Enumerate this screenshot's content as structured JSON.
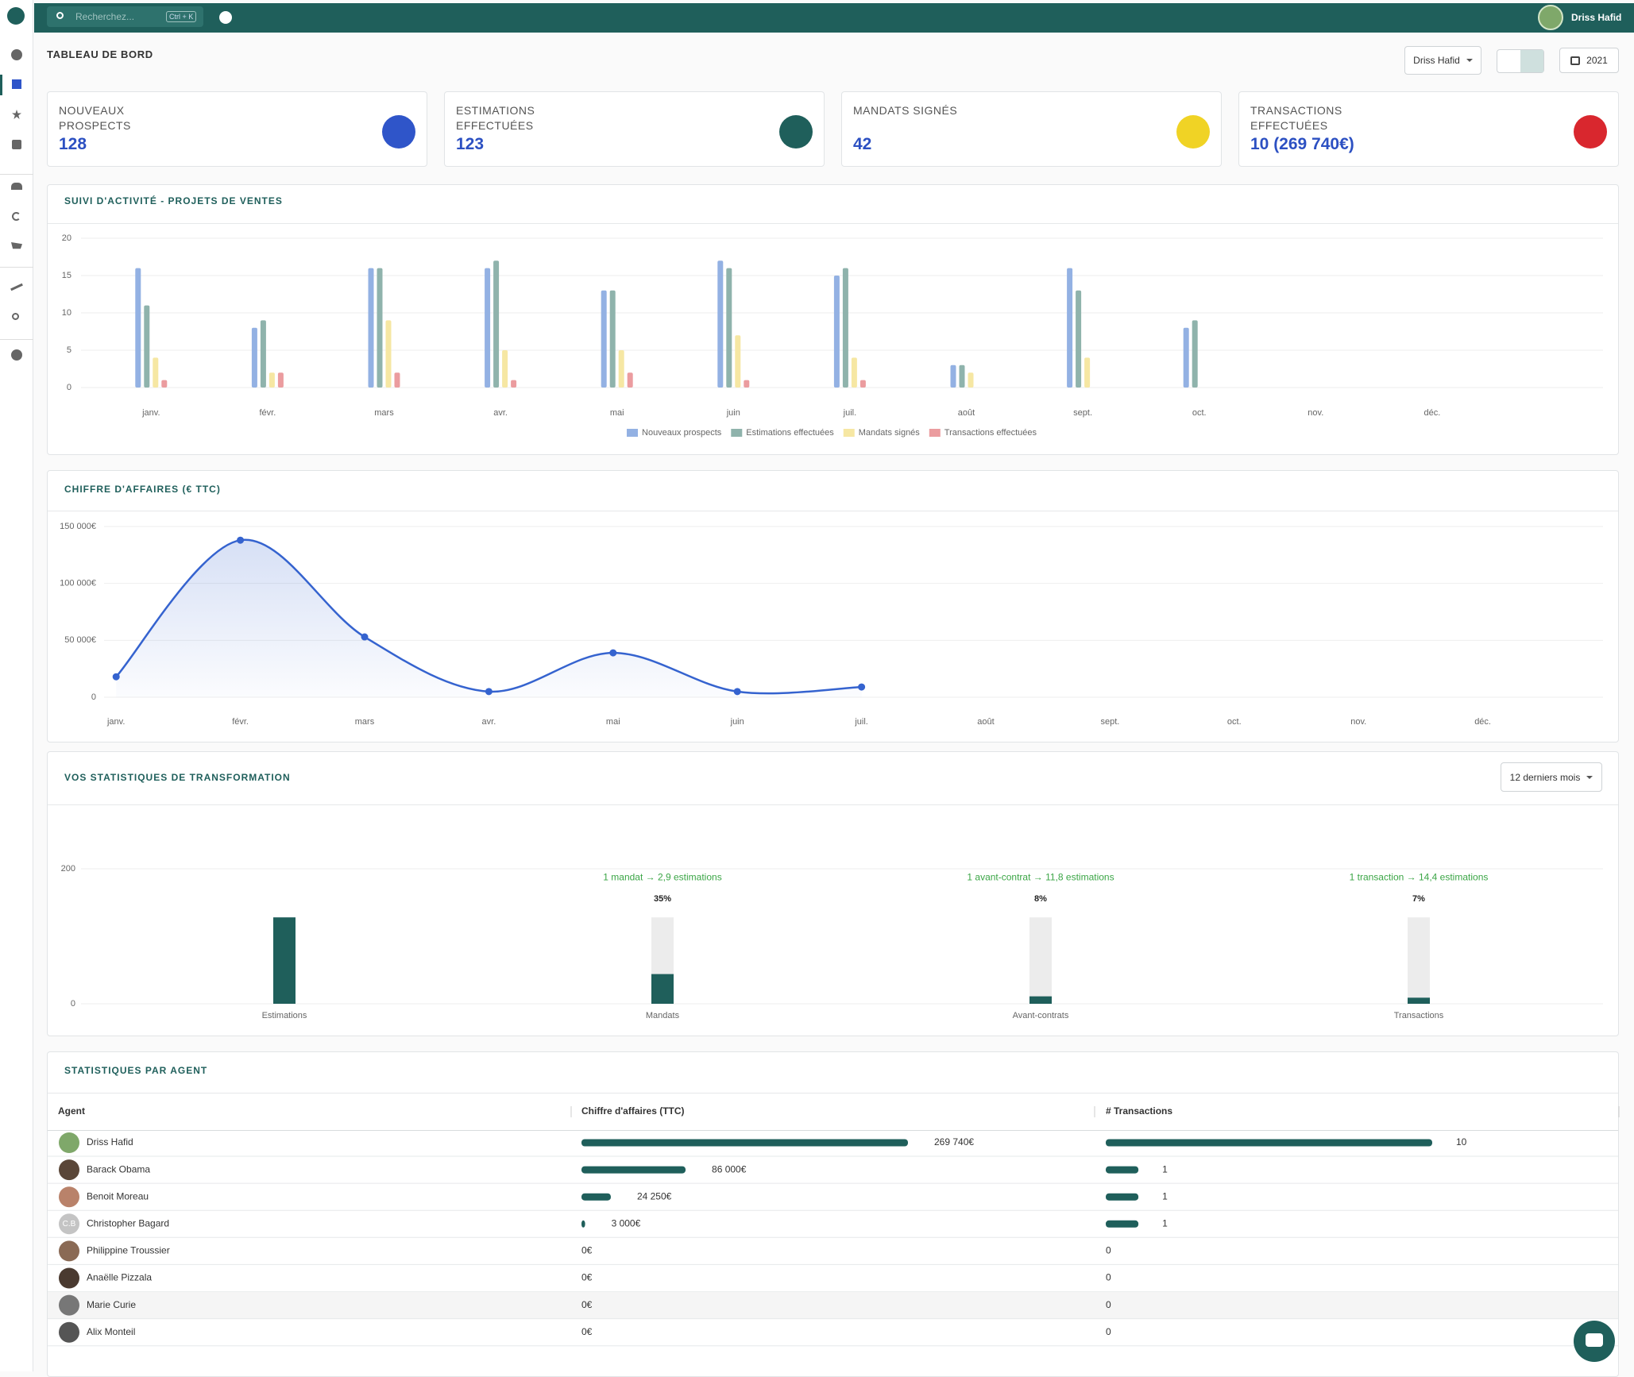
{
  "header": {
    "search_placeholder": "Recherchez...",
    "shortcut": "Ctrl + K",
    "user": "Driss Hafid"
  },
  "page": {
    "title": "TABLEAU DE BORD",
    "agent_filter": "Driss Hafid",
    "year": "2021"
  },
  "kpis": [
    {
      "label": "NOUVEAUX PROSPECTS",
      "value": 128,
      "color": "#2f55c9"
    },
    {
      "label": "ESTIMATIONS EFFECTUÉES",
      "value": 123,
      "color": "#1f5f5b"
    },
    {
      "label": "MANDATS SIGNÉS",
      "value": 42,
      "color": "#f0d325"
    },
    {
      "label": "TRANSACTIONS EFFECTUÉES",
      "value": "10 (269 740€)",
      "color": "#d9272e"
    }
  ],
  "chart_data": [
    {
      "type": "bar",
      "title": "SUIVI D'ACTIVITÉ - PROJETS DE VENTES",
      "categories": [
        "janv.",
        "févr.",
        "mars",
        "avr.",
        "mai",
        "juin",
        "juil.",
        "août",
        "sept.",
        "oct.",
        "nov.",
        "déc."
      ],
      "series": [
        {
          "name": "Nouveaux prospects",
          "color": "#93b1e3",
          "values": [
            16,
            8,
            16,
            16,
            13,
            17,
            15,
            3,
            16,
            8,
            null,
            null
          ]
        },
        {
          "name": "Estimations effectuées",
          "color": "#8fb3ac",
          "values": [
            11,
            9,
            16,
            17,
            13,
            16,
            16,
            3,
            13,
            9,
            null,
            null
          ]
        },
        {
          "name": "Mandats signés",
          "color": "#f6e7a3",
          "values": [
            4,
            2,
            9,
            5,
            5,
            7,
            4,
            2,
            4,
            0,
            null,
            null
          ]
        },
        {
          "name": "Transactions effectuées",
          "color": "#eb9c9f",
          "values": [
            1,
            2,
            2,
            1,
            2,
            1,
            1,
            0,
            0,
            0,
            null,
            null
          ]
        }
      ],
      "ylim": [
        0,
        20
      ],
      "yticks": [
        0,
        5,
        10,
        15,
        20
      ],
      "grid": true,
      "legend": "bottom"
    },
    {
      "type": "line",
      "title": "CHIFFRE D'AFFAIRES (€ TTC)",
      "categories": [
        "janv.",
        "févr.",
        "mars",
        "avr.",
        "mai",
        "juin",
        "juil.",
        "août",
        "sept.",
        "oct.",
        "nov.",
        "déc."
      ],
      "values": [
        18000,
        138000,
        53000,
        5000,
        39000,
        5000,
        9000,
        null,
        null,
        null,
        null,
        null
      ],
      "color": "#3563cf",
      "ylim": [
        0,
        150000
      ],
      "yticks": [
        0,
        {
          "value": 50000,
          "label": "50 000€"
        },
        {
          "value": 100000,
          "label": "100 000€"
        },
        {
          "value": 150000,
          "label": "150 000€"
        }
      ],
      "grid": true
    },
    {
      "type": "funnel",
      "title": "VOS STATISTIQUES DE TRANSFORMATION",
      "period": "12 derniers mois",
      "categories": [
        "Estimations",
        "Mandats",
        "Avant-contrats",
        "Transactions"
      ],
      "values": [
        128,
        44,
        11,
        9
      ],
      "rate_labels": [
        null,
        "35%",
        "8%",
        "7%"
      ],
      "ratios": [
        null,
        "1 mandat → 2,9 estimations",
        "1 avant-contrat → 11,8 estimations",
        "1 transaction → 14,4 estimations"
      ],
      "color": "#1f5f5b",
      "background_color": "#ececec",
      "ratio_color": "#3aa545",
      "ylim": [
        0,
        200
      ],
      "yticks": [
        0,
        200
      ],
      "grid": true
    }
  ],
  "agents_table": {
    "title": "STATISTIQUES PAR AGENT",
    "columns": [
      "Agent",
      "Chiffre d'affaires (TTC)",
      "# Transactions"
    ],
    "bar_color": "#1f5f5b",
    "rows": [
      {
        "name": "Driss Hafid",
        "revenue": 269740,
        "revenue_label": "269 740€",
        "transactions": 10
      },
      {
        "name": "Barack Obama",
        "revenue": 86000,
        "revenue_label": "86 000€",
        "transactions": 1
      },
      {
        "name": "Benoit Moreau",
        "revenue": 24250,
        "revenue_label": "24 250€",
        "transactions": 1
      },
      {
        "name": "Christopher Bagard",
        "initials": "C.B",
        "revenue": 3000,
        "revenue_label": "3 000€",
        "transactions": 1
      },
      {
        "name": "Philippine Troussier",
        "revenue": 0,
        "revenue_label": "0€",
        "transactions": 0
      },
      {
        "name": "Anaëlle Pizzala",
        "revenue": 0,
        "revenue_label": "0€",
        "transactions": 0
      },
      {
        "name": "Marie Curie",
        "revenue": 0,
        "revenue_label": "0€",
        "transactions": 0
      },
      {
        "name": "Alix Monteil",
        "revenue": 0,
        "revenue_label": "0€",
        "transactions": 0
      }
    ]
  }
}
